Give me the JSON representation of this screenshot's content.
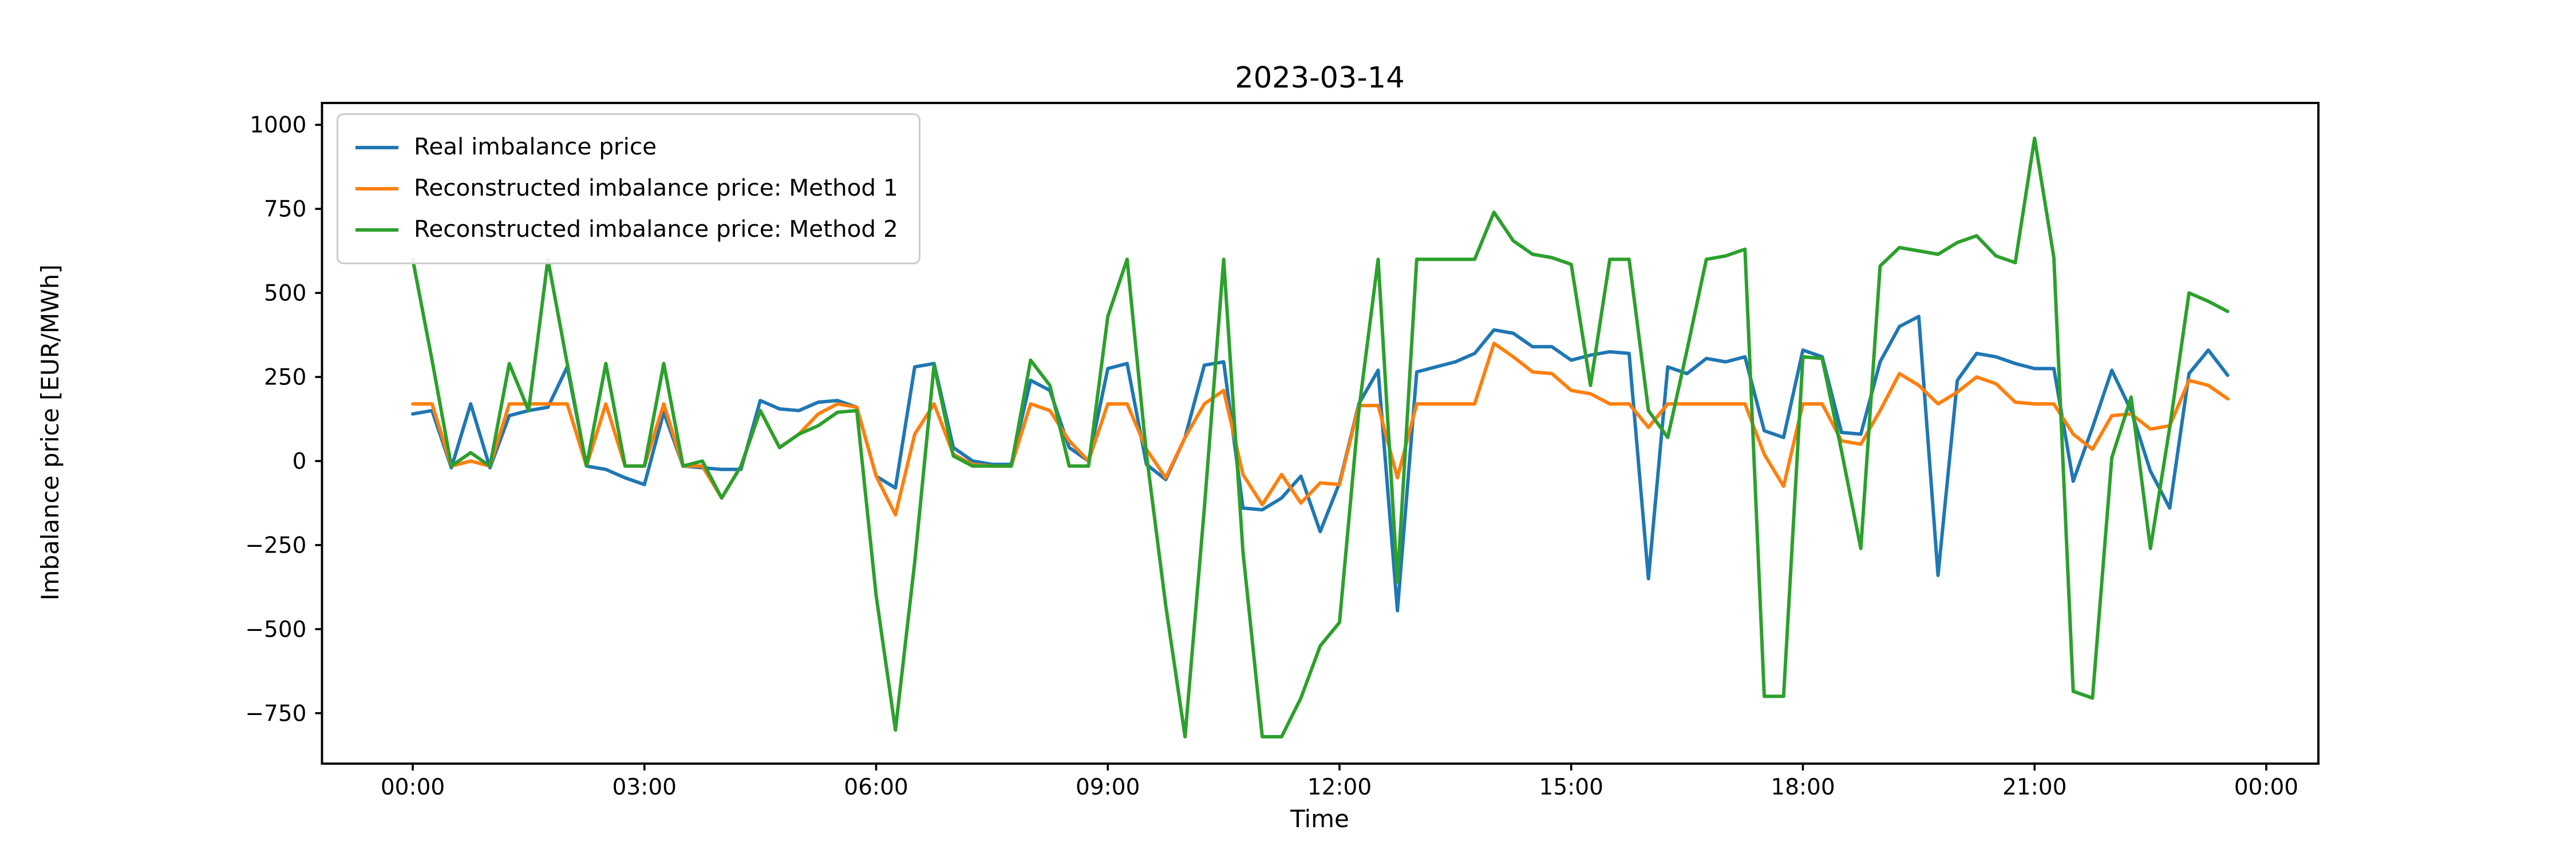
{
  "figure": {
    "title": "2023-03-14",
    "xlabel": "Time",
    "ylabel": "Imbalance price [EUR/MWh]",
    "background_color": "#ffffff",
    "spine_color": "#000000"
  },
  "chart_data": {
    "type": "line",
    "title": "2023-03-14",
    "xlabel": "Time",
    "ylabel": "Imbalance price [EUR/MWh]",
    "x_unit": "15-minute intervals starting at 00:00",
    "x_tick_positions": [
      0,
      12,
      24,
      36,
      48,
      60,
      72,
      84,
      96
    ],
    "x_tick_labels": [
      "00:00",
      "03:00",
      "06:00",
      "09:00",
      "12:00",
      "15:00",
      "18:00",
      "21:00",
      "00:00"
    ],
    "y_ticks": [
      1000,
      750,
      500,
      250,
      0,
      -250,
      -500,
      -750
    ],
    "xlim": [
      -4.7,
      98.7
    ],
    "ylim": [
      -900,
      1065
    ],
    "grid": false,
    "legend_position": "upper left",
    "series": [
      {
        "name": "Real imbalance price",
        "color": "#1f77b4",
        "values": [
          140,
          150,
          -20,
          170,
          -20,
          135,
          150,
          160,
          280,
          -15,
          -25,
          -50,
          -70,
          145,
          -15,
          -20,
          -25,
          -25,
          180,
          155,
          150,
          175,
          180,
          160,
          -45,
          -80,
          280,
          290,
          40,
          0,
          -10,
          -10,
          240,
          210,
          40,
          0,
          275,
          290,
          -10,
          -55,
          70,
          285,
          295,
          -140,
          -145,
          -110,
          -45,
          -210,
          -65,
          170,
          270,
          -445,
          265,
          280,
          295,
          320,
          390,
          380,
          340,
          340,
          300,
          315,
          325,
          320,
          -350,
          280,
          260,
          305,
          295,
          310,
          90,
          70,
          330,
          310,
          85,
          80,
          295,
          400,
          430,
          -340,
          240,
          320,
          310,
          290,
          275,
          275,
          -60,
          100,
          270,
          150,
          -30,
          -140,
          260,
          330,
          255
        ]
      },
      {
        "name": "Reconstructed imbalance price: Method 1",
        "color": "#ff7f0e",
        "values": [
          170,
          170,
          -15,
          0,
          -15,
          170,
          170,
          170,
          170,
          -15,
          170,
          -15,
          -15,
          170,
          -15,
          -15,
          -110,
          -15,
          150,
          40,
          80,
          140,
          170,
          160,
          -45,
          -160,
          80,
          170,
          20,
          -10,
          -15,
          -15,
          170,
          150,
          60,
          0,
          170,
          170,
          35,
          -50,
          70,
          170,
          210,
          -40,
          -130,
          -40,
          -125,
          -65,
          -70,
          165,
          165,
          -50,
          170,
          170,
          170,
          170,
          350,
          310,
          265,
          260,
          210,
          200,
          170,
          170,
          100,
          170,
          170,
          170,
          170,
          170,
          20,
          -75,
          170,
          170,
          60,
          50,
          150,
          260,
          225,
          170,
          205,
          250,
          230,
          175,
          170,
          170,
          80,
          35,
          135,
          140,
          95,
          105,
          240,
          225,
          185
        ]
      },
      {
        "name": "Reconstructed imbalance price: Method 2",
        "color": "#2ca02c",
        "values": [
          600,
          300,
          -15,
          25,
          -15,
          290,
          150,
          600,
          290,
          -15,
          290,
          -15,
          -15,
          290,
          -15,
          0,
          -110,
          -15,
          150,
          40,
          80,
          105,
          145,
          150,
          -400,
          -800,
          -300,
          285,
          15,
          -15,
          -15,
          -15,
          300,
          225,
          -15,
          -15,
          430,
          600,
          20,
          -430,
          -820,
          -140,
          600,
          -270,
          -820,
          -820,
          -705,
          -550,
          -480,
          150,
          600,
          -360,
          600,
          600,
          600,
          600,
          740,
          655,
          615,
          605,
          585,
          225,
          600,
          600,
          150,
          70,
          330,
          600,
          610,
          630,
          -700,
          -700,
          310,
          305,
          30,
          -260,
          580,
          635,
          625,
          615,
          650,
          670,
          610,
          590,
          960,
          605,
          -685,
          -705,
          10,
          190,
          -260,
          100,
          500,
          475,
          445
        ]
      }
    ]
  }
}
